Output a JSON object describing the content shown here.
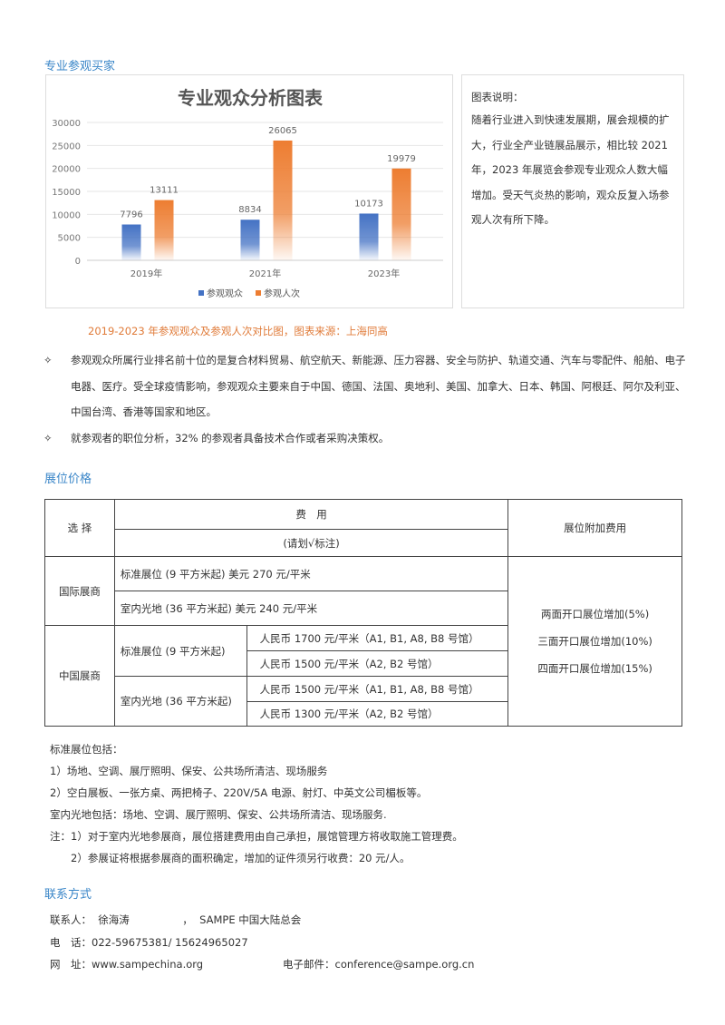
{
  "sections": {
    "buyers": "专业参观买家",
    "pricing": "展位价格",
    "contact": "联系方式"
  },
  "chart_data": {
    "type": "bar",
    "title": "专业观众分析图表",
    "categories": [
      "2019年",
      "2021年",
      "2023年"
    ],
    "series": [
      {
        "name": "参观观众",
        "values": [
          7796,
          8834,
          10173
        ],
        "color": "#4472c4"
      },
      {
        "name": "参观人次",
        "values": [
          13111,
          26065,
          19979
        ],
        "color": "#ed7d31"
      }
    ],
    "yticks": [
      0,
      5000,
      10000,
      15000,
      20000,
      25000,
      30000
    ],
    "ylim": [
      0,
      30000
    ],
    "grid": true,
    "legend": "bottom"
  },
  "description": {
    "title": "图表说明：",
    "text": "随着行业进入到快速发展期，展会规模的扩大，行业全产业链展品展示，相比较 2021 年，2023 年展览会参观专业观众人数大幅增加。受天气炎热的影响，观众反复入场参观人次有所下降。"
  },
  "caption": "2019-2023 年参观观众及参观人次对比图，图表来源：上海同高",
  "bullets": [
    "参观观众所属行业排名前十位的是复合材料贸易、航空航天、新能源、压力容器、安全与防护、轨道交通、汽车与零配件、船舶、电子电器、医疗。受全球疫情影响，参观观众主要来自于中国、德国、法国、奥地利、美国、加拿大、日本、韩国、阿根廷、阿尔及利亚、中国台湾、香港等国家和地区。",
    "就参观者的职位分析，32% 的参观者具备技术合作或者采购决策权。"
  ],
  "bullet_glyph": "✧",
  "table": {
    "select": "选 择",
    "fee": "费　用",
    "mark": "(请划√标注)",
    "extra": "展位附加费用",
    "intl": "国际展商",
    "intl_std": "标准展位 (9 平方米起) 美元 270 元/平米",
    "intl_raw": "室内光地 (36 平方米起) 美元 240 元/平米",
    "cn": "中国展商",
    "cn_std": "标准展位 (9 平方米起)",
    "cn_raw": "室内光地 (36 平方米起)",
    "cn_std_1": "人民币 1700 元/平米（A1, B1, A8, B8 号馆）",
    "cn_std_2": "人民币 1500 元/平米（A2, B2 号馆）",
    "cn_raw_1": "人民币 1500 元/平米（A1, B1, A8, B8 号馆）",
    "cn_raw_2": "人民币 1300 元/平米（A2, B2 号馆）",
    "extras": [
      "两面开口展位增加(5%)",
      "三面开口展位增加(10%)",
      "四面开口展位增加(15%)"
    ]
  },
  "notes": [
    "标准展位包括：",
    "1）场地、空调、展厅照明、保安、公共场所清洁、现场服务",
    "2）空白展板、一张方桌、两把椅子、220V/5A 电源、射灯、中英文公司楣板等。",
    "室内光地包括：场地、空调、展厅照明、保安、公共场所清洁、现场服务.",
    "注：1）对于室内光地参展商，展位搭建费用由自己承担，展馆管理方将收取施工管理费。",
    "2）参展证将根据参展商的面积确定，增加的证件须另行收费：20 元/人。"
  ],
  "contact": {
    "person": "联系人：  徐海涛                ，  SAMPE 中国大陆总会",
    "phone": "电　话：022-59675381/ 15624965027",
    "web": "网　址：www.sampechina.org",
    "email": "电子邮件：conference@sampe.org.cn"
  }
}
